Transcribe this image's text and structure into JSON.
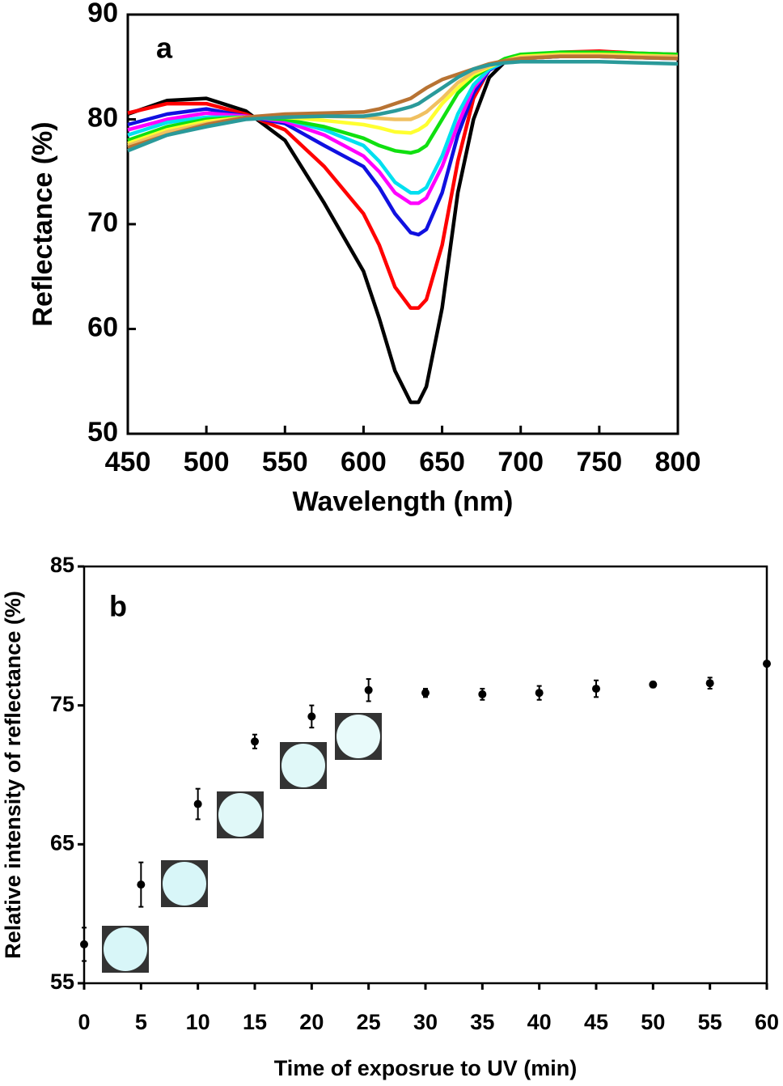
{
  "chart_data": [
    {
      "type": "line",
      "annotation": "a",
      "xlabel": "Wavelength (nm)",
      "ylabel": "Reflectance (%)",
      "xlim": [
        450,
        800
      ],
      "xticks": [
        450,
        500,
        550,
        600,
        650,
        700,
        750,
        800
      ],
      "ylim": [
        50,
        90
      ],
      "yticks": [
        50,
        60,
        70,
        80,
        90
      ],
      "x": [
        450,
        475,
        500,
        525,
        550,
        575,
        600,
        610,
        620,
        630,
        635,
        640,
        650,
        660,
        670,
        680,
        690,
        700,
        725,
        750,
        775,
        800
      ],
      "series": [
        {
          "color": "#000000",
          "values": [
            80.5,
            81.8,
            82,
            80.8,
            78,
            72,
            65.5,
            61,
            56,
            53,
            53,
            54.5,
            62,
            73,
            80,
            84,
            85.5,
            85.8,
            86.2,
            86.2,
            86,
            86
          ]
        },
        {
          "color": "#ff0000",
          "values": [
            80.6,
            81.5,
            81.5,
            80.5,
            79,
            75.5,
            71,
            68,
            64,
            62,
            62,
            62.8,
            68,
            76,
            82,
            84.8,
            85.5,
            86,
            86.4,
            86.5,
            86.3,
            86.2
          ]
        },
        {
          "color": "#1010e0",
          "values": [
            79.5,
            80.5,
            81,
            80.3,
            79.6,
            77.5,
            75.5,
            73.5,
            71,
            69.2,
            69,
            69.5,
            73,
            78.5,
            82.5,
            84.7,
            85.5,
            85.8,
            86,
            86,
            85.9,
            85.8
          ]
        },
        {
          "color": "#ff00ff",
          "values": [
            79,
            80,
            80.6,
            80.3,
            79.8,
            78.5,
            76.5,
            75,
            73,
            72,
            72,
            72.5,
            75.5,
            79.5,
            83,
            84.8,
            85.5,
            85.8,
            86,
            86,
            85.9,
            85.8
          ]
        },
        {
          "color": "#00e0f0",
          "values": [
            78.5,
            79.7,
            80.2,
            80.2,
            80,
            79,
            77.5,
            76,
            74,
            73,
            73,
            73.5,
            76.5,
            80.5,
            83.3,
            84.8,
            85.5,
            85.8,
            86,
            86,
            85.9,
            85.8
          ]
        },
        {
          "color": "#10e010",
          "values": [
            78,
            79.3,
            80,
            80.2,
            80,
            79.3,
            78.2,
            77.5,
            77,
            76.8,
            77,
            77.5,
            80,
            82.5,
            84,
            85,
            85.8,
            86.2,
            86.4,
            86.4,
            86.3,
            86.2
          ]
        },
        {
          "color": "#ffff30",
          "values": [
            77.7,
            79,
            79.8,
            80.2,
            80.2,
            79.9,
            79.5,
            79.2,
            78.8,
            78.7,
            79,
            79.5,
            81.5,
            83,
            84.3,
            85,
            85.6,
            86,
            86.2,
            86.2,
            86.1,
            86
          ]
        },
        {
          "color": "#f0c060",
          "values": [
            77.5,
            78.8,
            79.6,
            80.2,
            80.3,
            80.3,
            80.2,
            80.1,
            80,
            80,
            80.3,
            80.7,
            82,
            83.5,
            84.5,
            85.1,
            85.6,
            85.9,
            86.1,
            86.1,
            86,
            86
          ]
        },
        {
          "color": "#b87333",
          "values": [
            77.3,
            78.5,
            79.5,
            80.2,
            80.5,
            80.6,
            80.7,
            81,
            81.5,
            82,
            82.5,
            83,
            83.8,
            84.3,
            84.8,
            85.3,
            85.6,
            85.8,
            86,
            86,
            85.9,
            85.8
          ]
        },
        {
          "color": "#2a9a9a",
          "values": [
            77,
            78.5,
            79.3,
            80,
            80.2,
            80.3,
            80.3,
            80.5,
            80.8,
            81.2,
            81.5,
            82,
            83,
            84,
            84.8,
            85.2,
            85.4,
            85.5,
            85.5,
            85.5,
            85.4,
            85.3
          ]
        }
      ]
    },
    {
      "type": "scatter",
      "annotation": "b",
      "xlabel": "Time of exposrue to UV (min)",
      "ylabel": "Relative intensity of reflectance (%)",
      "xlim": [
        0,
        60
      ],
      "xticks": [
        0,
        5,
        10,
        15,
        20,
        25,
        30,
        35,
        40,
        45,
        50,
        55,
        60
      ],
      "ylim": [
        55,
        85
      ],
      "yticks": [
        55,
        65,
        75,
        85
      ],
      "color": "#000000",
      "x": [
        0,
        5,
        10,
        15,
        20,
        25,
        30,
        35,
        40,
        45,
        50,
        55,
        60
      ],
      "values": [
        57.8,
        62.1,
        67.9,
        72.4,
        74.2,
        76.1,
        75.9,
        75.8,
        75.9,
        76.2,
        76.5,
        76.6,
        78
      ],
      "errors": [
        1.2,
        1.6,
        1.1,
        0.5,
        0.8,
        0.8,
        0.3,
        0.4,
        0.5,
        0.6,
        0.2,
        0.4,
        0
      ]
    }
  ]
}
